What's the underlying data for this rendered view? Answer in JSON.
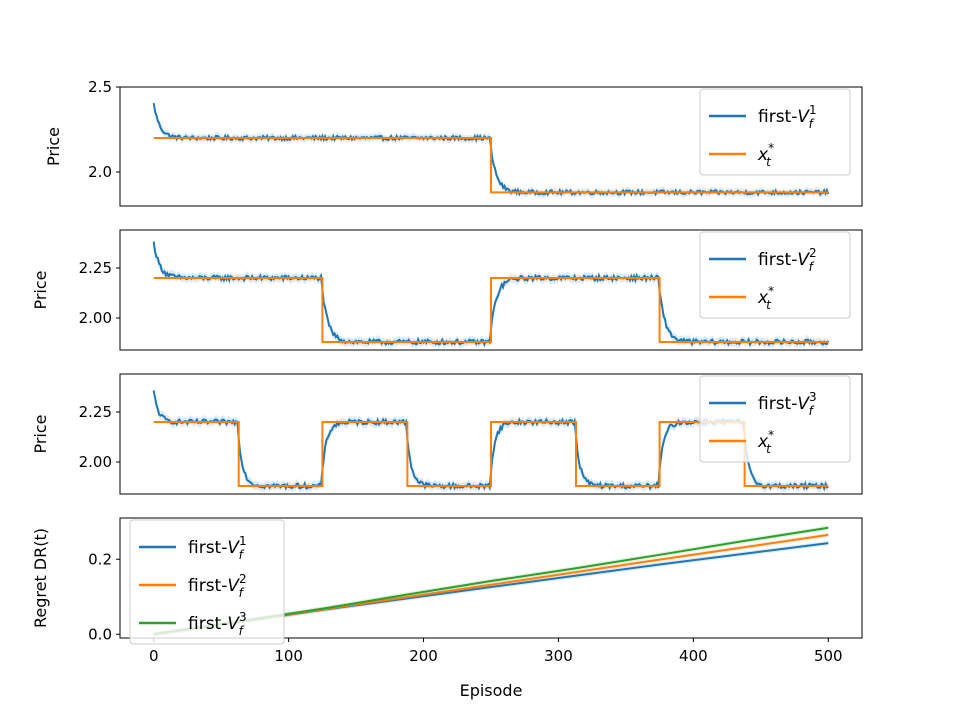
{
  "chart_data": [
    {
      "type": "line",
      "panel": 1,
      "ylabel": "Price",
      "xlabel": "",
      "xlim": [
        -25,
        525
      ],
      "ylim": [
        1.8,
        2.5
      ],
      "yticks": [
        2.0,
        2.5
      ],
      "ytick_labels": [
        "2.0",
        "2.5"
      ],
      "show_xticks": false,
      "legend_position": "top-right",
      "series": [
        {
          "name": "first-V_f^1",
          "legend_base": "first-",
          "legend_var": "V",
          "legend_sub": "f",
          "legend_sup": "1",
          "color": "#1f77b4",
          "style": "adaptive",
          "start": 2.45,
          "tau": 5,
          "noise": 0.012,
          "band": 0.022
        },
        {
          "name": "x_t^*",
          "legend_base": "",
          "legend_var": "x",
          "legend_sub": "t",
          "legend_sup": "*",
          "color": "#ff7f0e",
          "style": "step",
          "segments": [
            {
              "x0": 0,
              "x1": 250,
              "y": 2.2
            },
            {
              "x0": 250,
              "x1": 500,
              "y": 1.88
            }
          ]
        }
      ]
    },
    {
      "type": "line",
      "panel": 2,
      "ylabel": "Price",
      "xlabel": "",
      "xlim": [
        -25,
        525
      ],
      "ylim": [
        1.84,
        2.44
      ],
      "yticks": [
        2.0,
        2.25
      ],
      "ytick_labels": [
        "2.00",
        "2.25"
      ],
      "show_xticks": false,
      "legend_position": "top-right",
      "series": [
        {
          "name": "first-V_f^2",
          "legend_base": "first-",
          "legend_var": "V",
          "legend_sub": "f",
          "legend_sup": "2",
          "color": "#1f77b4",
          "style": "adaptive",
          "start": 2.42,
          "tau": 5,
          "noise": 0.012,
          "band": 0.022
        },
        {
          "name": "x_t^*",
          "legend_base": "",
          "legend_var": "x",
          "legend_sub": "t",
          "legend_sup": "*",
          "color": "#ff7f0e",
          "style": "step",
          "segments": [
            {
              "x0": 0,
              "x1": 125,
              "y": 2.2
            },
            {
              "x0": 125,
              "x1": 250,
              "y": 1.88
            },
            {
              "x0": 250,
              "x1": 375,
              "y": 2.2
            },
            {
              "x0": 375,
              "x1": 500,
              "y": 1.88
            }
          ]
        }
      ]
    },
    {
      "type": "line",
      "panel": 3,
      "ylabel": "Price",
      "xlabel": "",
      "xlim": [
        -25,
        525
      ],
      "ylim": [
        1.84,
        2.44
      ],
      "yticks": [
        2.0,
        2.25
      ],
      "ytick_labels": [
        "2.00",
        "2.25"
      ],
      "show_xticks": false,
      "legend_position": "top-right",
      "series": [
        {
          "name": "first-V_f^3",
          "legend_base": "first-",
          "legend_var": "V",
          "legend_sub": "f",
          "legend_sup": "3",
          "color": "#1f77b4",
          "style": "adaptive",
          "start": 2.4,
          "tau": 4,
          "noise": 0.012,
          "band": 0.022
        },
        {
          "name": "x_t^*",
          "legend_base": "",
          "legend_var": "x",
          "legend_sub": "t",
          "legend_sup": "*",
          "color": "#ff7f0e",
          "style": "step",
          "segments": [
            {
              "x0": 0,
              "x1": 63,
              "y": 2.2
            },
            {
              "x0": 63,
              "x1": 125,
              "y": 1.88
            },
            {
              "x0": 125,
              "x1": 188,
              "y": 2.2
            },
            {
              "x0": 188,
              "x1": 250,
              "y": 1.88
            },
            {
              "x0": 250,
              "x1": 313,
              "y": 2.2
            },
            {
              "x0": 313,
              "x1": 375,
              "y": 1.88
            },
            {
              "x0": 375,
              "x1": 438,
              "y": 2.2
            },
            {
              "x0": 438,
              "x1": 500,
              "y": 1.88
            }
          ]
        }
      ]
    },
    {
      "type": "line",
      "panel": 4,
      "ylabel": "Regret DR(t)",
      "xlabel": "Episode",
      "xlim": [
        -25,
        525
      ],
      "ylim": [
        -0.01,
        0.31
      ],
      "yticks": [
        0.0,
        0.2
      ],
      "ytick_labels": [
        "0.0",
        "0.2"
      ],
      "xticks": [
        0,
        100,
        200,
        300,
        400,
        500
      ],
      "xtick_labels": [
        "0",
        "100",
        "200",
        "300",
        "400",
        "500"
      ],
      "show_xticks": true,
      "legend_position": "top-left",
      "series": [
        {
          "name": "first-V_f^1",
          "legend_base": "first-",
          "legend_var": "V",
          "legend_sub": "f",
          "legend_sup": "1",
          "color": "#1f77b4",
          "style": "polyline",
          "band": 0.006,
          "points": [
            [
              0,
              0.0
            ],
            [
              125,
              0.065
            ],
            [
              250,
              0.126
            ],
            [
              375,
              0.186
            ],
            [
              500,
              0.243
            ]
          ]
        },
        {
          "name": "first-V_f^2",
          "legend_base": "first-",
          "legend_var": "V",
          "legend_sub": "f",
          "legend_sup": "2",
          "color": "#ff7f0e",
          "style": "polyline",
          "band": 0.006,
          "points": [
            [
              0,
              0.0
            ],
            [
              125,
              0.066
            ],
            [
              250,
              0.132
            ],
            [
              375,
              0.199
            ],
            [
              500,
              0.265
            ]
          ]
        },
        {
          "name": "first-V_f^3",
          "legend_base": "first-",
          "legend_var": "V",
          "legend_sub": "f",
          "legend_sup": "3",
          "color": "#2ca02c",
          "style": "polyline",
          "band": 0.006,
          "points": [
            [
              0,
              0.0
            ],
            [
              63,
              0.034
            ],
            [
              125,
              0.068
            ],
            [
              188,
              0.106
            ],
            [
              250,
              0.142
            ],
            [
              313,
              0.176
            ],
            [
              375,
              0.212
            ],
            [
              438,
              0.249
            ],
            [
              500,
              0.284
            ]
          ]
        }
      ]
    }
  ]
}
